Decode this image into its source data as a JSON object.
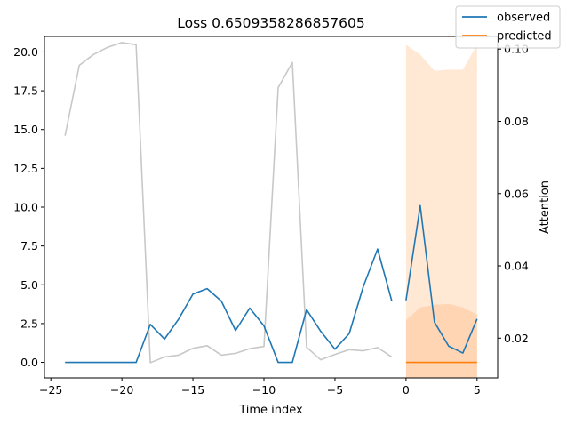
{
  "chart_data": {
    "type": "line",
    "title": "Loss 0.6509358286857605",
    "xlabel": "Time index",
    "ylabel_left": "",
    "ylabel_right": "Attention",
    "xlim": [
      -25.45,
      6.45
    ],
    "ylim_left": [
      -1.0,
      21.0
    ],
    "ylim_right": [
      0.009,
      0.1035
    ],
    "xticks": [
      -25,
      -20,
      -15,
      -10,
      -5,
      0,
      5
    ],
    "xtick_labels": [
      "−25",
      "−20",
      "−15",
      "−10",
      "−5",
      "0",
      "5"
    ],
    "yticks_left": [
      0.0,
      2.5,
      5.0,
      7.5,
      10.0,
      12.5,
      15.0,
      17.5,
      20.0
    ],
    "ytick_labels_left": [
      "0.0",
      "2.5",
      "5.0",
      "7.5",
      "10.0",
      "12.5",
      "15.0",
      "17.5",
      "20.0"
    ],
    "yticks_right": [
      0.02,
      0.04,
      0.06,
      0.08,
      0.1
    ],
    "ytick_labels_right": [
      "0.02",
      "0.04",
      "0.06",
      "0.08",
      "0.10"
    ],
    "legend_position": "top-right",
    "grid": false,
    "series": [
      {
        "name": "observed",
        "axis": "left",
        "color": "#1f77b4",
        "x": [
          -24,
          -23,
          -22,
          -21,
          -20,
          -19,
          -18,
          -17,
          -16,
          -15,
          -14,
          -13,
          -12,
          -11,
          -10,
          -9,
          -8,
          -7,
          -6,
          -5,
          -4,
          -3,
          -2,
          -1
        ],
        "y": [
          0.0,
          0.0,
          0.0,
          0.0,
          0.0,
          0.0,
          2.45,
          1.5,
          2.8,
          4.4,
          4.75,
          3.95,
          2.05,
          3.5,
          2.35,
          0.0,
          0.0,
          3.4,
          2.0,
          0.85,
          1.85,
          4.9,
          7.3,
          3.95
        ]
      },
      {
        "name": "",
        "axis": "left",
        "color": "#1f77b4",
        "x": [
          0,
          1,
          2,
          3,
          4,
          5
        ],
        "y": [
          4.0,
          10.1,
          2.6,
          1.05,
          0.6,
          2.8
        ]
      },
      {
        "name": "predicted",
        "axis": "left",
        "color": "#ff7f0e",
        "x": [
          0,
          1,
          2,
          3,
          4,
          5
        ],
        "y": [
          0.0,
          0.0,
          0.0,
          0.0,
          0.0,
          0.0
        ]
      },
      {
        "name": "",
        "axis": "right",
        "color": "#c8c8c8",
        "x": [
          -24,
          -23,
          -22,
          -21,
          -20,
          -19,
          -18,
          -17,
          -16,
          -15,
          -14,
          -13,
          -12,
          -11,
          -10,
          -9,
          -8,
          -7,
          -6,
          -5,
          -4,
          -3,
          -2,
          -1
        ],
        "y": [
          0.076,
          0.0955,
          0.0985,
          0.1005,
          0.1018,
          0.1012,
          0.0132,
          0.0148,
          0.0153,
          0.0172,
          0.0179,
          0.0153,
          0.0158,
          0.0171,
          0.0177,
          0.0893,
          0.0963,
          0.0175,
          0.014,
          0.0155,
          0.0168,
          0.0165,
          0.0174,
          0.0148
        ]
      }
    ],
    "bands": [
      {
        "axis": "right",
        "color": "#ffd8b8",
        "opacity": 0.6,
        "x": [
          0,
          1,
          2,
          3,
          4,
          5
        ],
        "lower": [
          0.0,
          0.0,
          0.0,
          0.0,
          0.0,
          0.0
        ],
        "upper": [
          0.1012,
          0.0985,
          0.094,
          0.0943,
          0.0943,
          0.1012
        ]
      },
      {
        "axis": "right",
        "color": "#ffc499",
        "opacity": 0.55,
        "x": [
          0,
          1,
          2,
          3,
          4,
          5
        ],
        "lower": [
          0.0,
          0.0,
          0.0,
          0.0,
          0.0,
          0.0
        ],
        "upper": [
          0.025,
          0.0285,
          0.0292,
          0.0295,
          0.0285,
          0.0265
        ]
      }
    ]
  }
}
